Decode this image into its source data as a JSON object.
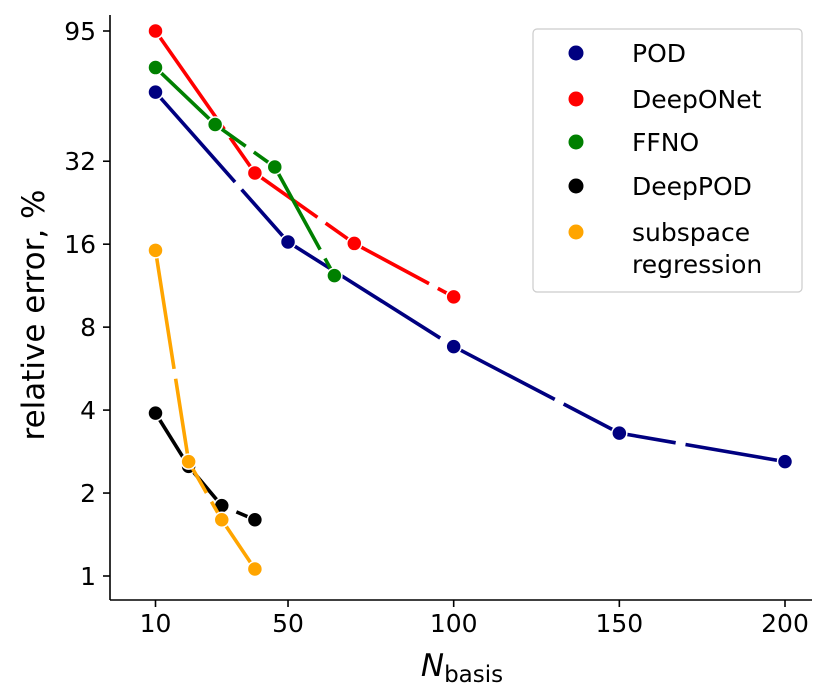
{
  "chart_data": {
    "type": "line",
    "title": "",
    "xlabel": "N",
    "xlabel_subscript": "basis",
    "ylabel": "relative error, %",
    "yscale": "log",
    "xlim": [
      0,
      200
    ],
    "ylim": [
      0.87,
      115
    ],
    "xticks": [
      10,
      50,
      100,
      150,
      200
    ],
    "xtick_labels": [
      "10",
      "50",
      "100",
      "150",
      "200"
    ],
    "yticks": [
      1,
      2,
      4,
      8,
      16,
      32,
      95
    ],
    "ytick_labels": [
      "1",
      "2",
      "4",
      "8",
      "16",
      "32",
      "95"
    ],
    "grid": false,
    "legend_position": "top-right",
    "series": [
      {
        "name": "POD",
        "color": "#000080",
        "linestyle": "dash-long",
        "x": [
          10,
          50,
          100,
          150,
          200
        ],
        "y": [
          57,
          16.3,
          6.8,
          3.3,
          2.6
        ]
      },
      {
        "name": "DeepONet",
        "color": "#ff0000",
        "linestyle": "dash-long",
        "x": [
          10,
          40,
          70,
          100
        ],
        "y": [
          95,
          29,
          16.1,
          10.3
        ]
      },
      {
        "name": "FFNO",
        "color": "#008000",
        "linestyle": "dash-long",
        "x": [
          10,
          28,
          46,
          64
        ],
        "y": [
          70,
          43.5,
          30.5,
          12.3
        ]
      },
      {
        "name": "DeepPOD",
        "color": "#000000",
        "linestyle": "dash-long",
        "x": [
          10,
          20,
          30,
          40
        ],
        "y": [
          3.9,
          2.5,
          1.8,
          1.6
        ]
      },
      {
        "name": "subspace\nregression",
        "color": "#ffa500",
        "linestyle": "dash-long",
        "x": [
          10,
          20,
          30,
          40
        ],
        "y": [
          15.2,
          2.6,
          1.6,
          1.06
        ]
      }
    ]
  }
}
